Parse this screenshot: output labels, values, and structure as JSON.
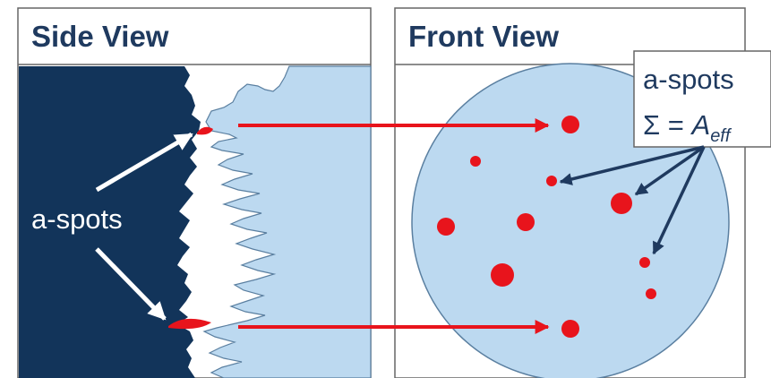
{
  "side_view": {
    "title": "Side View",
    "label": "a-spots"
  },
  "front_view": {
    "title": "Front View",
    "legend": {
      "line1": "a-spots",
      "sigma": "Σ = ",
      "area_symbol": "A",
      "area_subscript": "eff"
    }
  },
  "colors": {
    "dark_navy": "#12345a",
    "light_blue": "#bcd9f0",
    "spot_red": "#e8141c",
    "arrow_navy": "#1f3a5f",
    "border": "#666666"
  }
}
